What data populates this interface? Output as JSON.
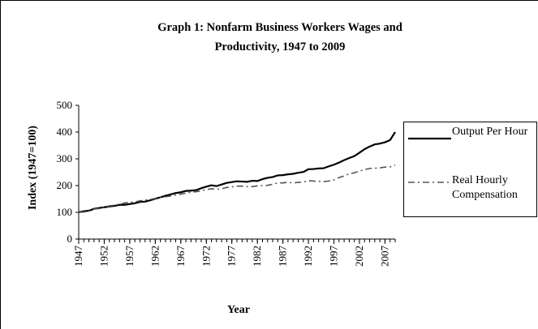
{
  "chart_data": {
    "type": "line",
    "title": "Graph 1: Nonfarm Business Workers Wages and Productivity, 1947 to 2009",
    "x_label": "Year",
    "y_label": "Index (1947=100)",
    "x": [
      1947,
      1948,
      1949,
      1950,
      1951,
      1952,
      1953,
      1954,
      1955,
      1956,
      1957,
      1958,
      1959,
      1960,
      1961,
      1962,
      1963,
      1964,
      1965,
      1966,
      1967,
      1968,
      1969,
      1970,
      1971,
      1972,
      1973,
      1974,
      1975,
      1976,
      1977,
      1978,
      1979,
      1980,
      1981,
      1982,
      1983,
      1984,
      1985,
      1986,
      1987,
      1988,
      1989,
      1990,
      1991,
      1992,
      1993,
      1994,
      1995,
      1996,
      1997,
      1998,
      1999,
      2000,
      2001,
      2002,
      2003,
      2004,
      2005,
      2006,
      2007,
      2008,
      2009
    ],
    "series": [
      {
        "name": "Output Per Hour",
        "color": "#000000",
        "dash": false,
        "values": [
          100,
          104,
          106,
          113,
          116,
          119,
          122,
          124,
          128,
          128,
          131,
          134,
          139,
          140,
          145,
          151,
          156,
          162,
          167,
          172,
          175,
          180,
          181,
          183,
          190,
          196,
          201,
          198,
          204,
          210,
          213,
          216,
          215,
          214,
          218,
          217,
          224,
          229,
          232,
          238,
          239,
          242,
          244,
          248,
          251,
          261,
          262,
          264,
          265,
          272,
          278,
          286,
          295,
          303,
          310,
          323,
          336,
          346,
          354,
          357,
          362,
          370,
          400
        ]
      },
      {
        "name": "Real Hourly Compensation",
        "color": "#555555",
        "dash": true,
        "values": [
          100,
          101,
          105,
          112,
          114,
          118,
          124,
          127,
          130,
          135,
          138,
          139,
          143,
          146,
          148,
          152,
          155,
          158,
          161,
          165,
          168,
          172,
          175,
          177,
          180,
          185,
          188,
          186,
          188,
          193,
          195,
          198,
          198,
          196,
          196,
          199,
          200,
          201,
          205,
          210,
          210,
          212,
          210,
          212,
          213,
          218,
          217,
          216,
          215,
          217,
          221,
          230,
          236,
          244,
          248,
          254,
          260,
          264,
          265,
          266,
          269,
          270,
          276
        ]
      }
    ],
    "xlim": [
      1947,
      2009
    ],
    "xticks": [
      1947,
      1952,
      1957,
      1962,
      1967,
      1972,
      1977,
      1982,
      1987,
      1992,
      1997,
      2002,
      2007
    ],
    "ylim": [
      0,
      500
    ],
    "yticks": [
      0,
      100,
      200,
      300,
      400,
      500
    ],
    "grid": false
  }
}
